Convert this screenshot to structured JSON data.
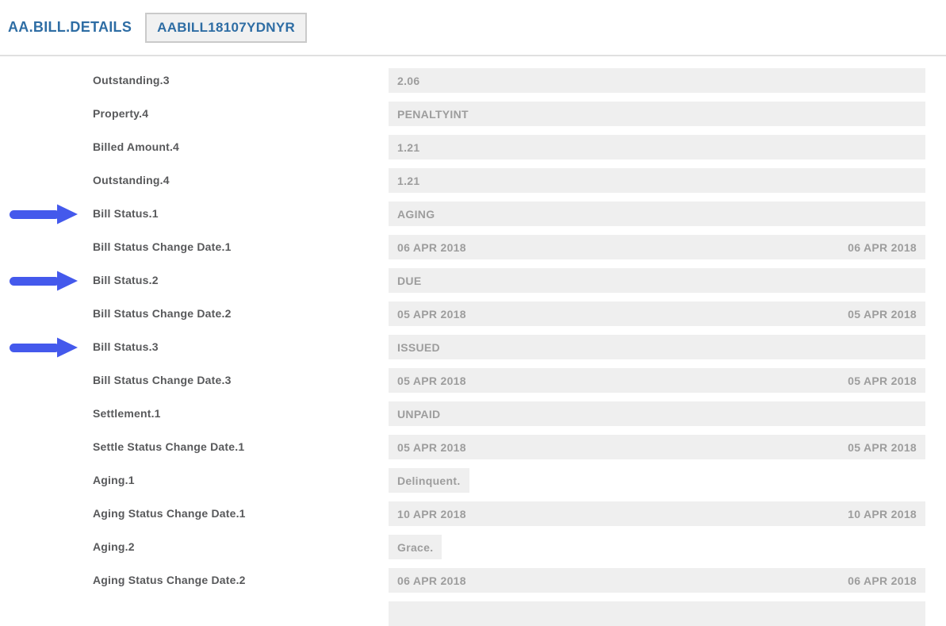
{
  "colors": {
    "accent_blue": "#2e6da4",
    "arrow_blue": "#4459ec",
    "label_text": "#58595b",
    "value_text": "#9d9d9d",
    "value_background": "#efefef",
    "divider": "#e0e0e0"
  },
  "header": {
    "title": "AA.BILL.DETAILS",
    "badge": "AABILL18107YDNYR"
  },
  "fields": [
    {
      "label": "Outstanding.3",
      "value": "2.06"
    },
    {
      "label": "Property.4",
      "value": "PENALTYINT"
    },
    {
      "label": "Billed Amount.4",
      "value": "1.21"
    },
    {
      "label": "Outstanding.4",
      "value": "1.21"
    },
    {
      "label": "Bill Status.1",
      "value": "AGING",
      "arrow": true
    },
    {
      "label": "Bill Status Change Date.1",
      "value": "06 APR 2018",
      "value_right": "06 APR 2018"
    },
    {
      "label": "Bill Status.2",
      "value": "DUE",
      "arrow": true
    },
    {
      "label": "Bill Status Change Date.2",
      "value": "05 APR 2018",
      "value_right": "05 APR 2018"
    },
    {
      "label": "Bill Status.3",
      "value": "ISSUED",
      "arrow": true
    },
    {
      "label": "Bill Status Change Date.3",
      "value": "05 APR 2018",
      "value_right": "05 APR 2018"
    },
    {
      "label": "Settlement.1",
      "value": "UNPAID"
    },
    {
      "label": "Settle Status Change Date.1",
      "value": "05 APR 2018",
      "value_right": "05 APR 2018"
    },
    {
      "label": "Aging.1",
      "value": "Delinquent.",
      "short": true
    },
    {
      "label": "Aging Status Change Date.1",
      "value": "10 APR 2018",
      "value_right": "10 APR 2018"
    },
    {
      "label": "Aging.2",
      "value": "Grace.",
      "short": true
    },
    {
      "label": "Aging Status Change Date.2",
      "value": "06 APR 2018",
      "value_right": "06 APR 2018"
    }
  ],
  "partial_next_row": true
}
